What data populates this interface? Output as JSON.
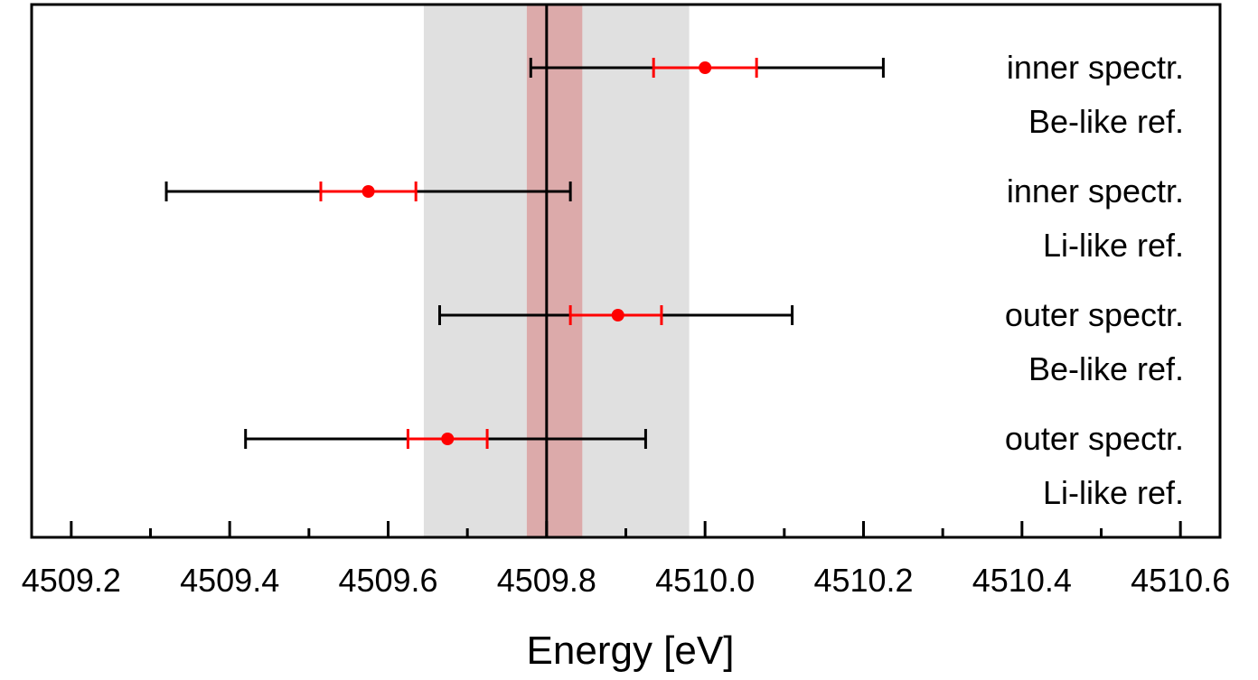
{
  "chart_data": {
    "type": "scatter",
    "title": "",
    "xlabel": "Energy [eV]",
    "ylabel": "",
    "xlim": [
      4509.15,
      4510.65
    ],
    "x_ticks": [
      4509.2,
      4509.4,
      4509.6,
      4509.8,
      4510.0,
      4510.2,
      4510.4,
      4510.6
    ],
    "x_tick_labels": [
      "4509.2",
      "4509.4",
      "4509.6",
      "4509.8",
      "4510.0",
      "4510.2",
      "4510.4",
      "4510.6"
    ],
    "x_minor_ticks": [
      4509.3,
      4509.5,
      4509.7,
      4509.9,
      4510.1,
      4510.3,
      4510.5
    ],
    "grid": false,
    "reference": {
      "value": 4509.8,
      "inner_band": [
        4509.775,
        4509.845
      ],
      "outer_band": [
        4509.645,
        4509.98
      ],
      "inner_band_color": "#dcaaaa",
      "outer_band_color": "#e0e0e0",
      "line_color": "#000000"
    },
    "point_color": "#ff0000",
    "stat_err_color": "#ff0000",
    "total_err_color": "#000000",
    "points": [
      {
        "label_line1": "inner spectr.",
        "label_line2": "Be-like ref.",
        "x": 4510.0,
        "stat_err": [
          4509.935,
          4510.065
        ],
        "total_err": [
          4509.78,
          4510.225
        ]
      },
      {
        "label_line1": "inner spectr.",
        "label_line2": "Li-like ref.",
        "x": 4509.575,
        "stat_err": [
          4509.515,
          4509.635
        ],
        "total_err": [
          4509.32,
          4509.83
        ]
      },
      {
        "label_line1": "outer spectr.",
        "label_line2": "Be-like ref.",
        "x": 4509.89,
        "stat_err": [
          4509.83,
          4509.945
        ],
        "total_err": [
          4509.665,
          4510.11
        ]
      },
      {
        "label_line1": "outer spectr.",
        "label_line2": "Li-like ref.",
        "x": 4509.675,
        "stat_err": [
          4509.625,
          4509.725
        ],
        "total_err": [
          4509.42,
          4509.925
        ]
      }
    ]
  }
}
